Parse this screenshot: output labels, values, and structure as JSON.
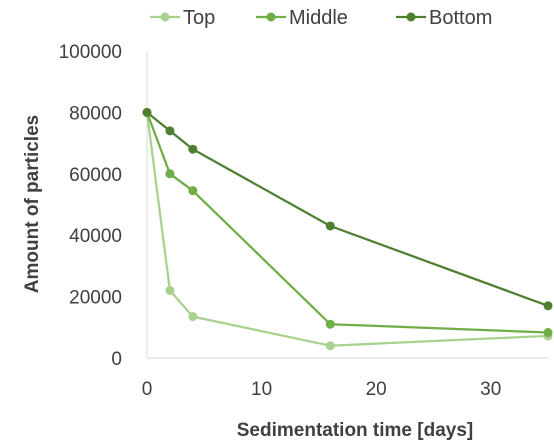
{
  "chart_data": {
    "type": "line",
    "title": "",
    "xlabel": "Sedimentation time [days]",
    "ylabel": "Amount of particles",
    "xlim": [
      0,
      35
    ],
    "ylim": [
      0,
      100000
    ],
    "xticks": [
      0,
      10,
      20,
      30
    ],
    "yticks": [
      0,
      20000,
      40000,
      60000,
      80000,
      100000
    ],
    "grid": "none",
    "legend_position": "top",
    "series": [
      {
        "name": "Top",
        "color": "#a9d18e",
        "x": [
          0,
          2,
          4,
          16,
          35
        ],
        "y": [
          80000,
          22000,
          13500,
          4000,
          7200
        ]
      },
      {
        "name": "Middle",
        "color": "#70ad47",
        "x": [
          0,
          2,
          4,
          16,
          35
        ],
        "y": [
          80000,
          60000,
          54500,
          11000,
          8300
        ]
      },
      {
        "name": "Bottom",
        "color": "#4e7f30",
        "x": [
          0,
          2,
          4,
          16,
          35
        ],
        "y": [
          80000,
          74000,
          68000,
          43000,
          17000
        ]
      }
    ]
  }
}
